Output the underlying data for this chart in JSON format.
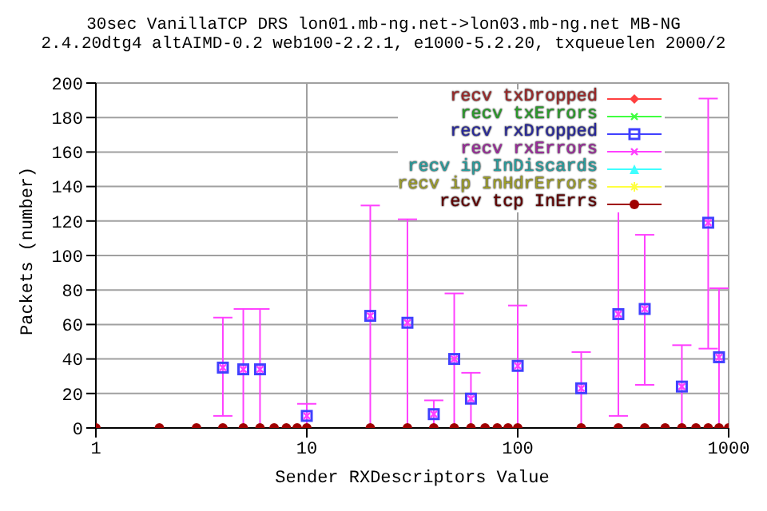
{
  "chart_data": {
    "type": "scatter",
    "title": "30sec VanillaTCP DRS lon01.mb-ng.net->lon03.mb-ng.net MB-NG",
    "subtitle": "2.4.20dtg4 altAIMD-0.2 web100-2.2.1, e1000-5.2.20, txqueuelen 2000/2",
    "xlabel": "Sender RXDescriptors Value",
    "ylabel": "Packets (number)",
    "x": [
      1,
      2,
      3,
      4,
      5,
      6,
      7,
      8,
      9,
      10,
      20,
      30,
      40,
      50,
      60,
      70,
      80,
      90,
      100,
      200,
      300,
      400,
      500,
      600,
      700,
      800,
      900,
      1000
    ],
    "series": [
      {
        "name": "recv txDropped",
        "color": "#ff4040",
        "marker": "diamond",
        "values": [
          null,
          null,
          null,
          null,
          null,
          null,
          null,
          null,
          null,
          null,
          null,
          null,
          null,
          null,
          null,
          null,
          null,
          null,
          null,
          null,
          null,
          null,
          null,
          null,
          null,
          null,
          null,
          null
        ]
      },
      {
        "name": "recv txErrors",
        "color": "#40ff40",
        "marker": "cross",
        "values": [
          null,
          null,
          null,
          null,
          null,
          null,
          null,
          null,
          null,
          null,
          null,
          null,
          null,
          null,
          null,
          null,
          null,
          null,
          null,
          null,
          null,
          null,
          null,
          null,
          null,
          null,
          null,
          null
        ]
      },
      {
        "name": "recv rxDropped",
        "color": "#4040ff",
        "marker": "square",
        "values": [
          null,
          null,
          null,
          35,
          34,
          34,
          null,
          null,
          null,
          7,
          65,
          61,
          8,
          40,
          17,
          null,
          null,
          null,
          36,
          23,
          66,
          69,
          null,
          24,
          null,
          119,
          41,
          null
        ]
      },
      {
        "name": "recv rxErrors",
        "color": "#ff40ff",
        "marker": "cross",
        "values": [
          null,
          null,
          null,
          35,
          34,
          34,
          null,
          null,
          null,
          7,
          65,
          61,
          8,
          40,
          17,
          null,
          null,
          null,
          36,
          23,
          66,
          69,
          null,
          24,
          null,
          119,
          41,
          null
        ],
        "errors": [
          null,
          null,
          null,
          [
            7,
            64
          ],
          [
            0,
            69
          ],
          [
            0,
            69
          ],
          null,
          null,
          null,
          [
            0,
            14
          ],
          [
            0,
            129
          ],
          [
            0,
            121
          ],
          [
            0,
            16
          ],
          [
            0,
            78
          ],
          [
            0,
            32
          ],
          null,
          null,
          null,
          [
            0,
            71
          ],
          [
            0,
            44
          ],
          [
            7,
            126
          ],
          [
            25,
            112
          ],
          null,
          [
            0,
            48
          ],
          null,
          [
            46,
            191
          ],
          [
            0,
            81
          ],
          null
        ]
      },
      {
        "name": "recv ip InDiscards",
        "color": "#40ffff",
        "marker": "triangle",
        "values": [
          null,
          null,
          null,
          null,
          null,
          null,
          null,
          null,
          null,
          null,
          null,
          null,
          null,
          null,
          null,
          null,
          null,
          null,
          null,
          null,
          null,
          null,
          null,
          null,
          null,
          null,
          null,
          null
        ]
      },
      {
        "name": "recv ip InHdrErrors",
        "color": "#ffff40",
        "marker": "star",
        "values": [
          null,
          null,
          null,
          null,
          null,
          null,
          null,
          null,
          null,
          null,
          null,
          null,
          null,
          null,
          null,
          null,
          null,
          null,
          null,
          null,
          null,
          null,
          null,
          null,
          null,
          null,
          null,
          null
        ]
      },
      {
        "name": "recv tcp InErrs",
        "color": "#a00000",
        "marker": "circle",
        "values": [
          0,
          0,
          0,
          0,
          0,
          0,
          0,
          0,
          0,
          0,
          0,
          0,
          0,
          0,
          0,
          0,
          0,
          0,
          0,
          0,
          0,
          0,
          0,
          0,
          0,
          0,
          0,
          0
        ]
      }
    ],
    "log": "x",
    "xlim": [
      1,
      1000
    ],
    "xticks": [
      1,
      10,
      100,
      1000
    ],
    "ylim": [
      0,
      200
    ],
    "yticks": [
      0,
      20,
      40,
      60,
      80,
      100,
      120,
      140,
      160,
      180,
      200
    ],
    "grid": true,
    "legend": "top right"
  }
}
